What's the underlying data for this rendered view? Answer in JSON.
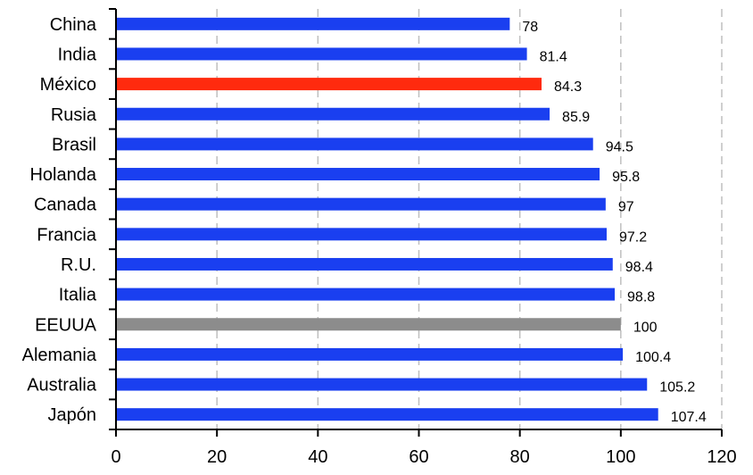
{
  "chart_data": {
    "type": "bar",
    "orientation": "horizontal",
    "title": "",
    "xlabel": "",
    "ylabel": "",
    "categories": [
      "China",
      "India",
      "México",
      "Rusia",
      "Brasil",
      "Holanda",
      "Canada",
      "Francia",
      "R.U.",
      "Italia",
      "EEUUA",
      "Alemania",
      "Australia",
      "Japón"
    ],
    "values": [
      78,
      81.4,
      84.3,
      85.9,
      94.5,
      95.8,
      97,
      97.2,
      98.4,
      98.8,
      100,
      100.4,
      105.2,
      107.4
    ],
    "data_labels": [
      "78",
      "81.4",
      "84.3",
      "85.9",
      "94.5",
      "95.8",
      "97",
      "97.2",
      "98.4",
      "98.8",
      "100",
      "100.4",
      "105.2",
      "107.4"
    ],
    "xlim": [
      0,
      120
    ],
    "xticks": [
      "0",
      "20",
      "40",
      "60",
      "80",
      "100",
      "120"
    ],
    "grid": "vertical dashed",
    "legend": "none",
    "colors": {
      "default": "#1a3ff0",
      "highlight": "#ff2a0e",
      "reference": "#8c8c8c",
      "grid": "#bfbfbf",
      "axis": "#000000"
    },
    "highlight_category": "México",
    "reference_category": "EEUUA"
  }
}
